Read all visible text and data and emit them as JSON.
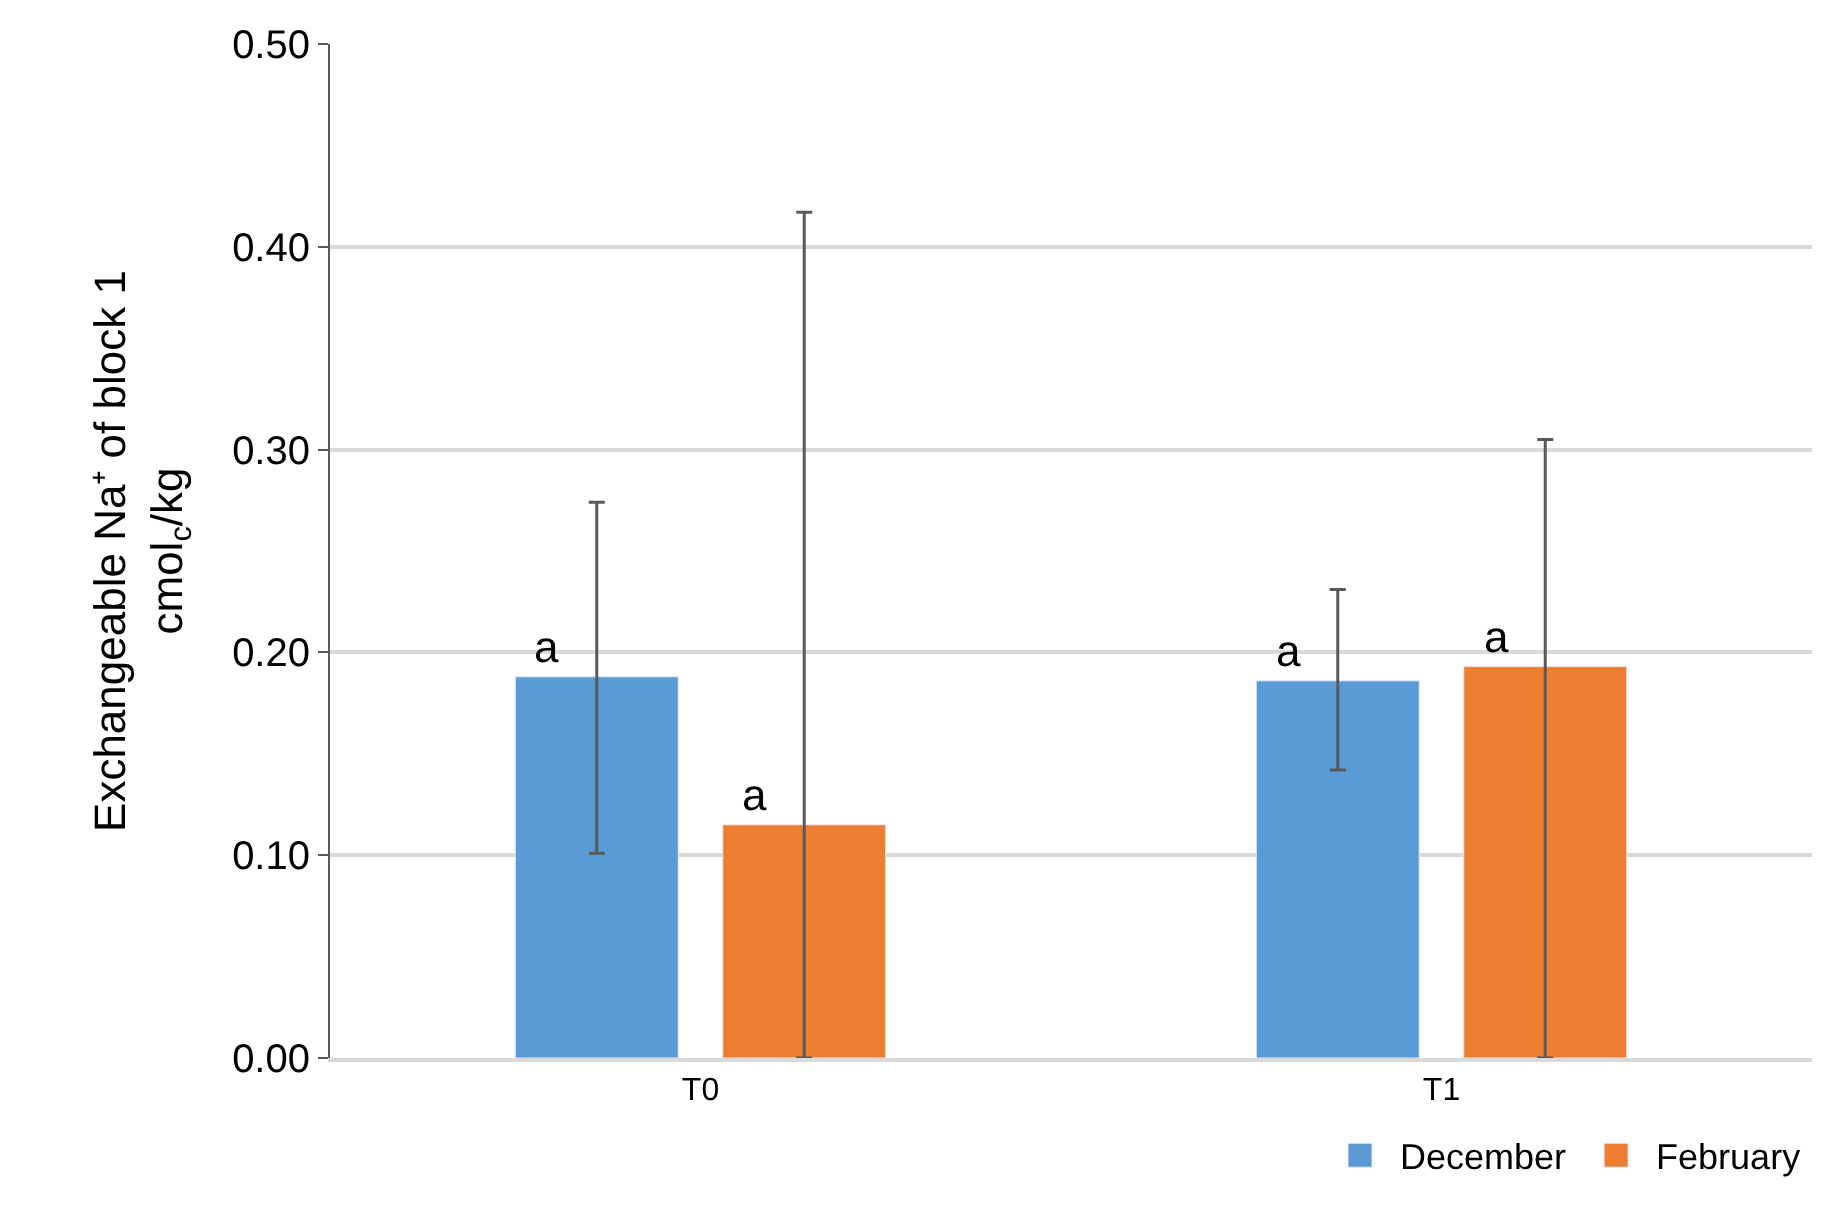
{
  "chart_data": {
    "type": "bar",
    "ylabel": "Exchangeable Na⁺ of block 1\ncmol$_{c}$/kg",
    "categories": [
      "T0",
      "T1"
    ],
    "series": [
      {
        "name": "December",
        "color": "#5b9bd5",
        "values": [
          0.188,
          0.186
        ],
        "errors": [
          [
            0.101,
            0.274
          ],
          [
            0.142,
            0.231
          ]
        ],
        "value_labels": [
          "a",
          "a"
        ]
      },
      {
        "name": "February",
        "color": "#ed7d31",
        "values": [
          0.115,
          0.193
        ],
        "errors": [
          [
            0,
            0.417
          ],
          [
            0,
            0.305
          ]
        ],
        "value_labels": [
          "a",
          "a"
        ]
      }
    ],
    "ylim": [
      0,
      0.5
    ],
    "yticks": [
      {
        "value": 0,
        "label": "0.00"
      },
      {
        "value": 0.1,
        "label": "0.10"
      },
      {
        "value": 0.2,
        "label": "0.20"
      },
      {
        "value": 0.3,
        "label": "0.30"
      },
      {
        "value": 0.4,
        "label": "0.40"
      },
      {
        "value": 0.5,
        "label": "0.50"
      }
    ],
    "grid": "y",
    "legend": "bottom right"
  }
}
